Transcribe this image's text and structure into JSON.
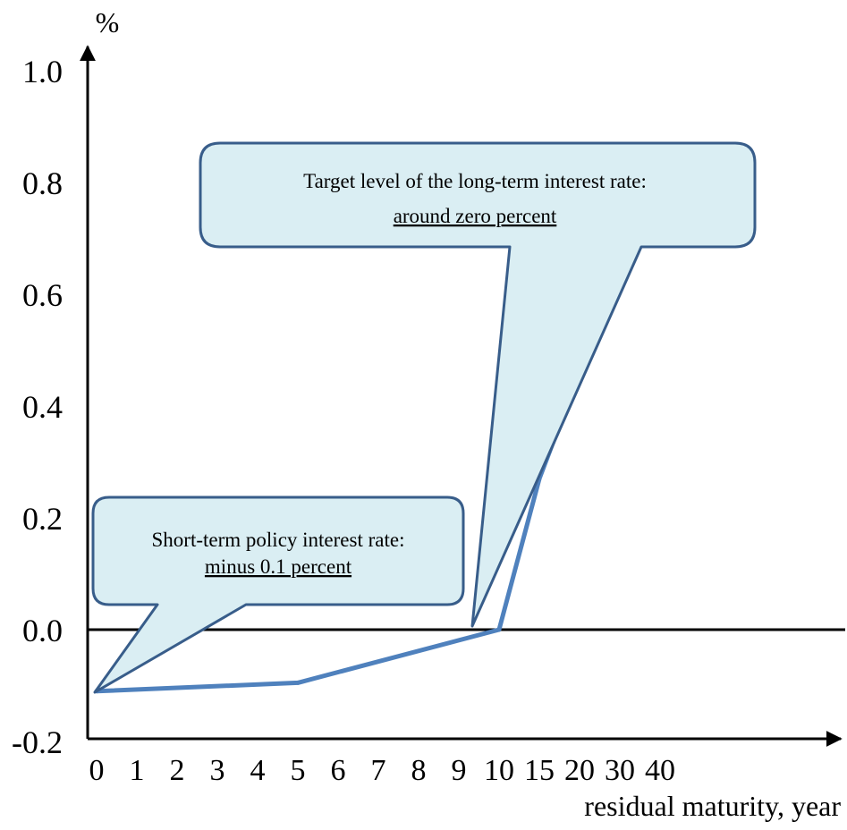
{
  "colors": {
    "line": "#4F81BD",
    "axis": "#000000",
    "callout_fill": "#DAEEF3",
    "callout_stroke": "#385D8A"
  },
  "chart_data": {
    "type": "line",
    "ylabel": "%",
    "xlabel": "residual maturity, year",
    "ylim": [
      -0.2,
      1.0
    ],
    "y_ticks": [
      "1.0",
      "0.8",
      "0.6",
      "0.4",
      "0.2",
      "0.0",
      "-0.2"
    ],
    "x_ticks": [
      "0",
      "1",
      "2",
      "3",
      "4",
      "5",
      "6",
      "7",
      "8",
      "9",
      "10",
      "15",
      "20",
      "30",
      "40"
    ],
    "x_scale": "non-uniform: one step per year from 0 to 10, then 15, 20, 30, 40",
    "grid": false,
    "series": [
      {
        "x": [
          0,
          5,
          10,
          15,
          20,
          30,
          40
        ],
        "y": [
          -0.11,
          -0.095,
          0.0,
          0.27,
          0.46,
          0.64,
          0.73
        ]
      }
    ],
    "annotations": [
      {
        "line1": "Short-term policy interest rate:",
        "line2": "minus 0.1 percent",
        "points_to": {
          "x": 0,
          "y": -0.11
        }
      },
      {
        "line1": "Target level of the long-term interest rate:",
        "line2": "around zero percent",
        "points_to": {
          "x": 10,
          "y": 0.0
        }
      }
    ]
  }
}
